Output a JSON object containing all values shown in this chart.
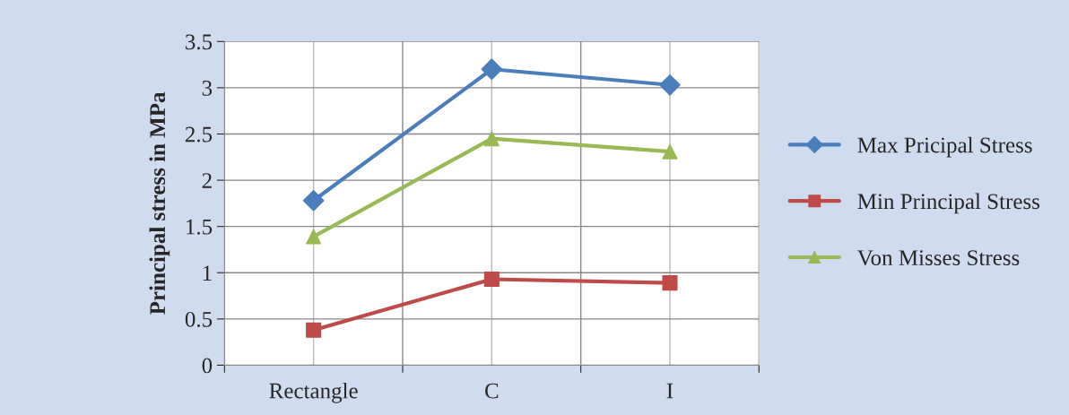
{
  "chart_data": {
    "type": "line",
    "ylabel": "Principal stress in MPa",
    "categories": [
      "Rectangle",
      "C",
      "I"
    ],
    "series": [
      {
        "name": "Max Pricipal Stress",
        "color": "#4a7ebb",
        "marker": "diamond",
        "values": [
          1.78,
          3.2,
          3.03
        ]
      },
      {
        "name": "Min Principal Stress",
        "color": "#be4b48",
        "marker": "square",
        "values": [
          0.38,
          0.93,
          0.89
        ]
      },
      {
        "name": "Von Misses Stress",
        "color": "#98b954",
        "marker": "triangle",
        "values": [
          1.39,
          2.45,
          2.31
        ]
      }
    ],
    "ylim": [
      0,
      3.5
    ],
    "yticks": [
      0,
      0.5,
      1,
      1.5,
      2,
      2.5,
      3,
      3.5
    ],
    "grid": true,
    "legend": "right"
  }
}
